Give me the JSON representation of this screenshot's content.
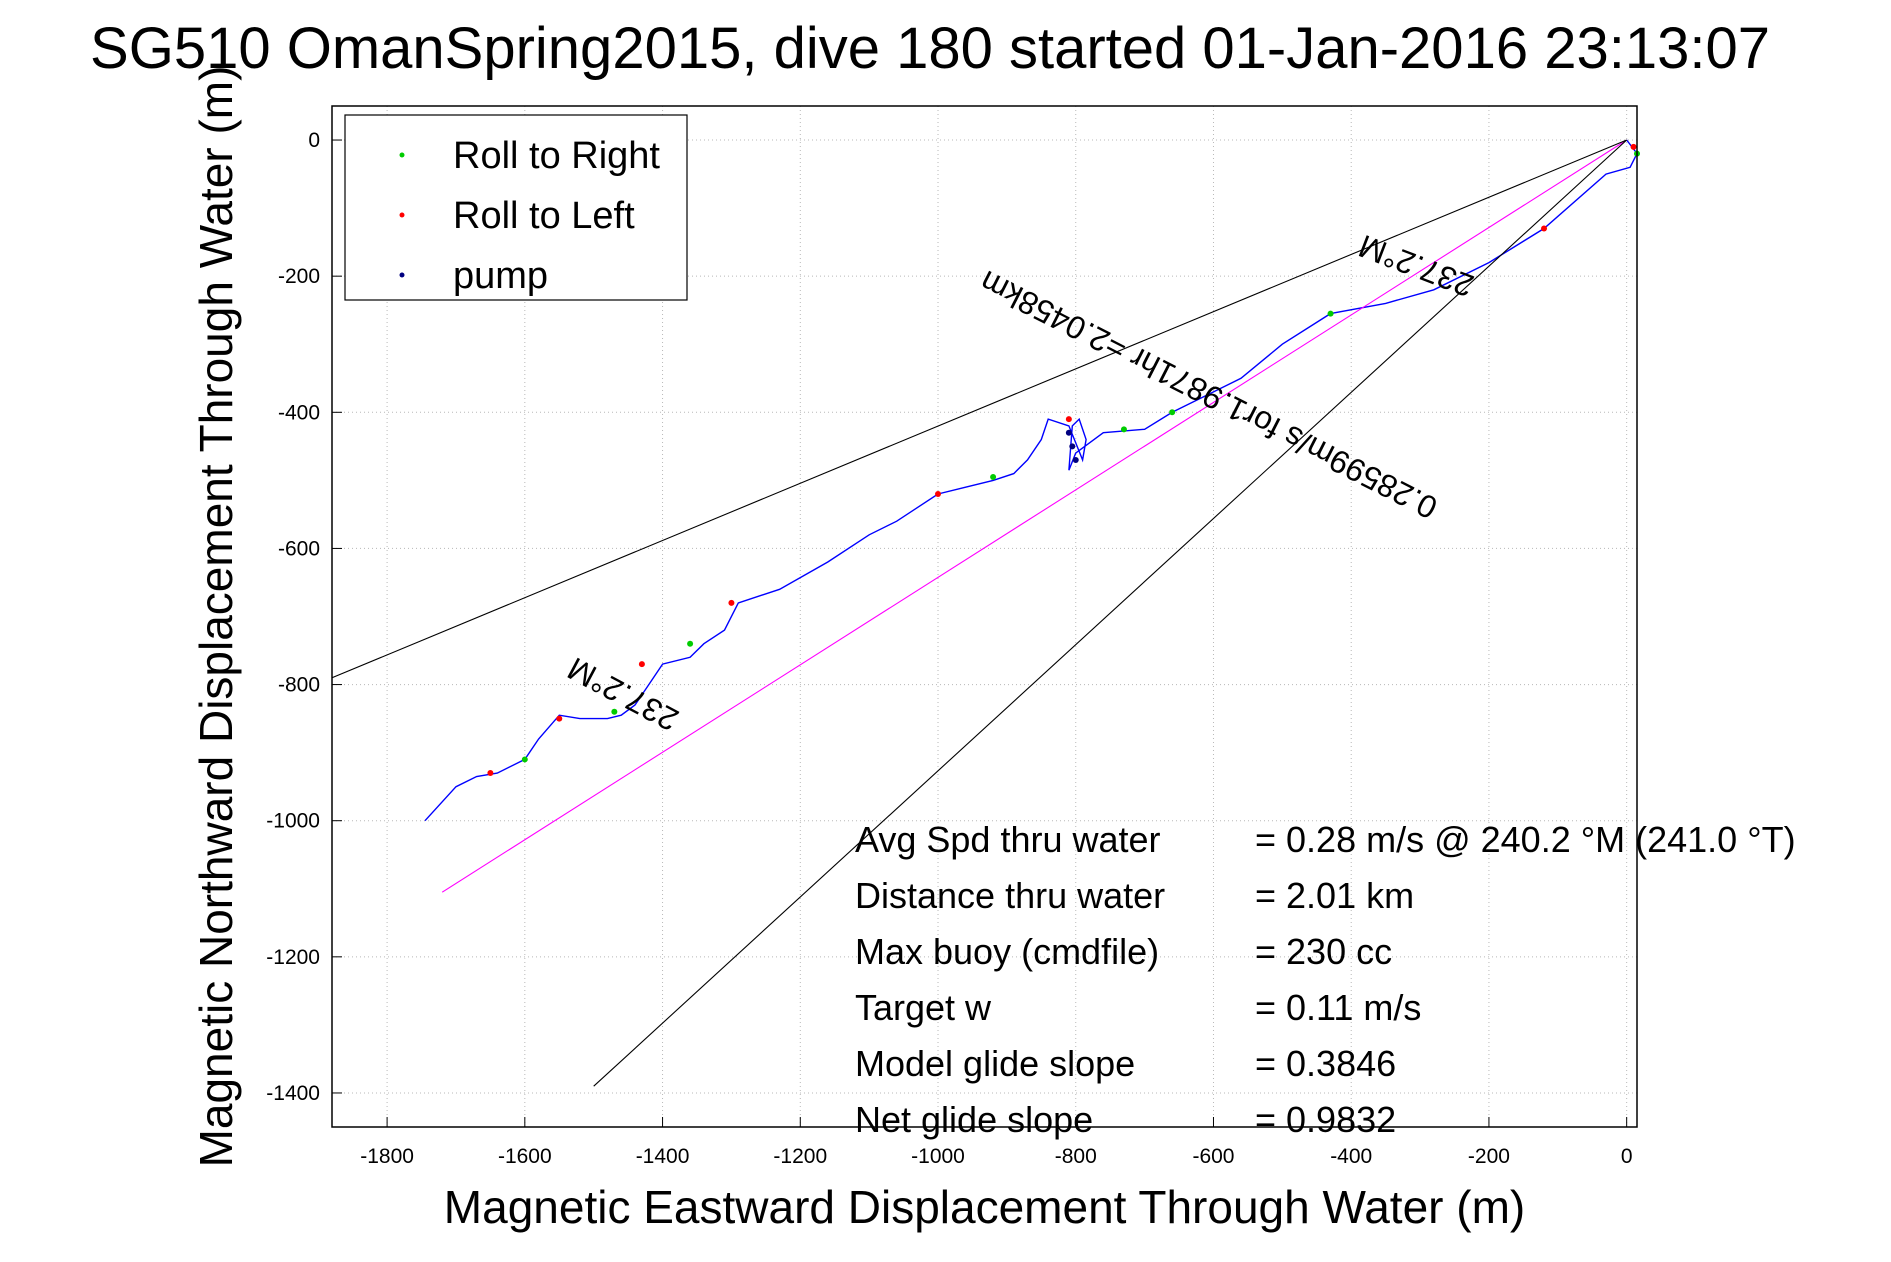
{
  "chart_data": {
    "type": "line",
    "title": "SG510 OmanSpring2015, dive 180 started 01-Jan-2016 23:13:07",
    "xlabel": "Magnetic Eastward Displacement Through Water (m)",
    "ylabel": "Magnetic Northward Displacement Through Water (m)",
    "xlim": [
      -1880,
      15
    ],
    "ylim": [
      -1450,
      50
    ],
    "xticks": [
      -1800,
      -1600,
      -1400,
      -1200,
      -1000,
      -800,
      -600,
      -400,
      -200,
      0
    ],
    "yticks": [
      0,
      -200,
      -400,
      -600,
      -800,
      -1000,
      -1200,
      -1400
    ],
    "grid": true,
    "legend": {
      "placement": "top-left",
      "entries": [
        {
          "label": "Roll to Right",
          "color": "#00cc00"
        },
        {
          "label": "Roll to Left",
          "color": "#ff0000"
        },
        {
          "label": "pump",
          "color": "#000080"
        }
      ]
    },
    "series": [
      {
        "color": "#0000ff",
        "x": [
          0,
          15,
          5,
          -30,
          -120,
          -200,
          -280,
          -350,
          -430,
          -500,
          -560,
          -600,
          -660,
          -700,
          -760,
          -800,
          -810,
          -805,
          -795,
          -785,
          -790,
          -810,
          -840,
          -850,
          -870,
          -890,
          -920,
          -960,
          -1000,
          -1030,
          -1060,
          -1100,
          -1160,
          -1230,
          -1290,
          -1310,
          -1340,
          -1360,
          -1400,
          -1420,
          -1440,
          -1460,
          -1480,
          -1520,
          -1550,
          -1580,
          -1600,
          -1640,
          -1670,
          -1700,
          -1745
        ],
        "y": [
          0,
          -20,
          -40,
          -50,
          -130,
          -180,
          -220,
          -240,
          -255,
          -300,
          -350,
          -370,
          -400,
          -425,
          -430,
          -460,
          -485,
          -420,
          -410,
          -440,
          -470,
          -420,
          -410,
          -440,
          -470,
          -490,
          -500,
          -510,
          -520,
          -540,
          -560,
          -580,
          -620,
          -660,
          -680,
          -720,
          -740,
          -760,
          -770,
          -800,
          -830,
          -845,
          -850,
          -850,
          -845,
          -880,
          -910,
          -930,
          -935,
          -950,
          -1000
        ]
      },
      {
        "color": "#ff00ff",
        "x": [
          0,
          -1720
        ],
        "y": [
          0,
          -1105
        ]
      },
      {
        "color": "#000000",
        "x": [
          0,
          -1880
        ],
        "y": [
          0,
          -790
        ]
      },
      {
        "color": "#000000",
        "x": [
          0,
          -1500
        ],
        "y": [
          0,
          -1390
        ]
      }
    ],
    "markers": {
      "roll_right": {
        "x": [
          15,
          -430,
          -660,
          -730,
          -920,
          -1360,
          -1470,
          -1600
        ],
        "y": [
          -20,
          -255,
          -400,
          -425,
          -495,
          -740,
          -840,
          -910
        ]
      },
      "roll_left": {
        "x": [
          10,
          -120,
          -810,
          -1000,
          -1300,
          -1430,
          -1550,
          -1650
        ],
        "y": [
          -10,
          -130,
          -410,
          -520,
          -680,
          -770,
          -850,
          -930
        ]
      },
      "pump": {
        "x": [
          -800,
          -805,
          -810
        ],
        "y": [
          -470,
          -450,
          -430
        ]
      }
    },
    "annotations": [
      {
        "text": "237.2°M",
        "x": -300,
        "y": -170,
        "rotation": 201
      },
      {
        "text": "0.28599m/s for1.9871hr =2.0458km",
        "x": -600,
        "y": -360,
        "rotation": 207
      },
      {
        "text": "237.2°M",
        "x": -1450,
        "y": -800,
        "rotation": 208
      }
    ],
    "stats": [
      {
        "label": "Avg Spd thru water",
        "value": "=  0.28 m/s @ 240.2  °M (241.0 °T)"
      },
      {
        "label": "Distance thru water",
        "value": "=  2.01 km"
      },
      {
        "label": "Max buoy (cmdfile)",
        "value": "= 230 cc"
      },
      {
        "label": "Target w",
        "value": "= 0.11 m/s"
      },
      {
        "label": "Model glide slope",
        "value": "= 0.3846"
      },
      {
        "label": "Net glide slope",
        "value": "= 0.9832"
      }
    ]
  }
}
